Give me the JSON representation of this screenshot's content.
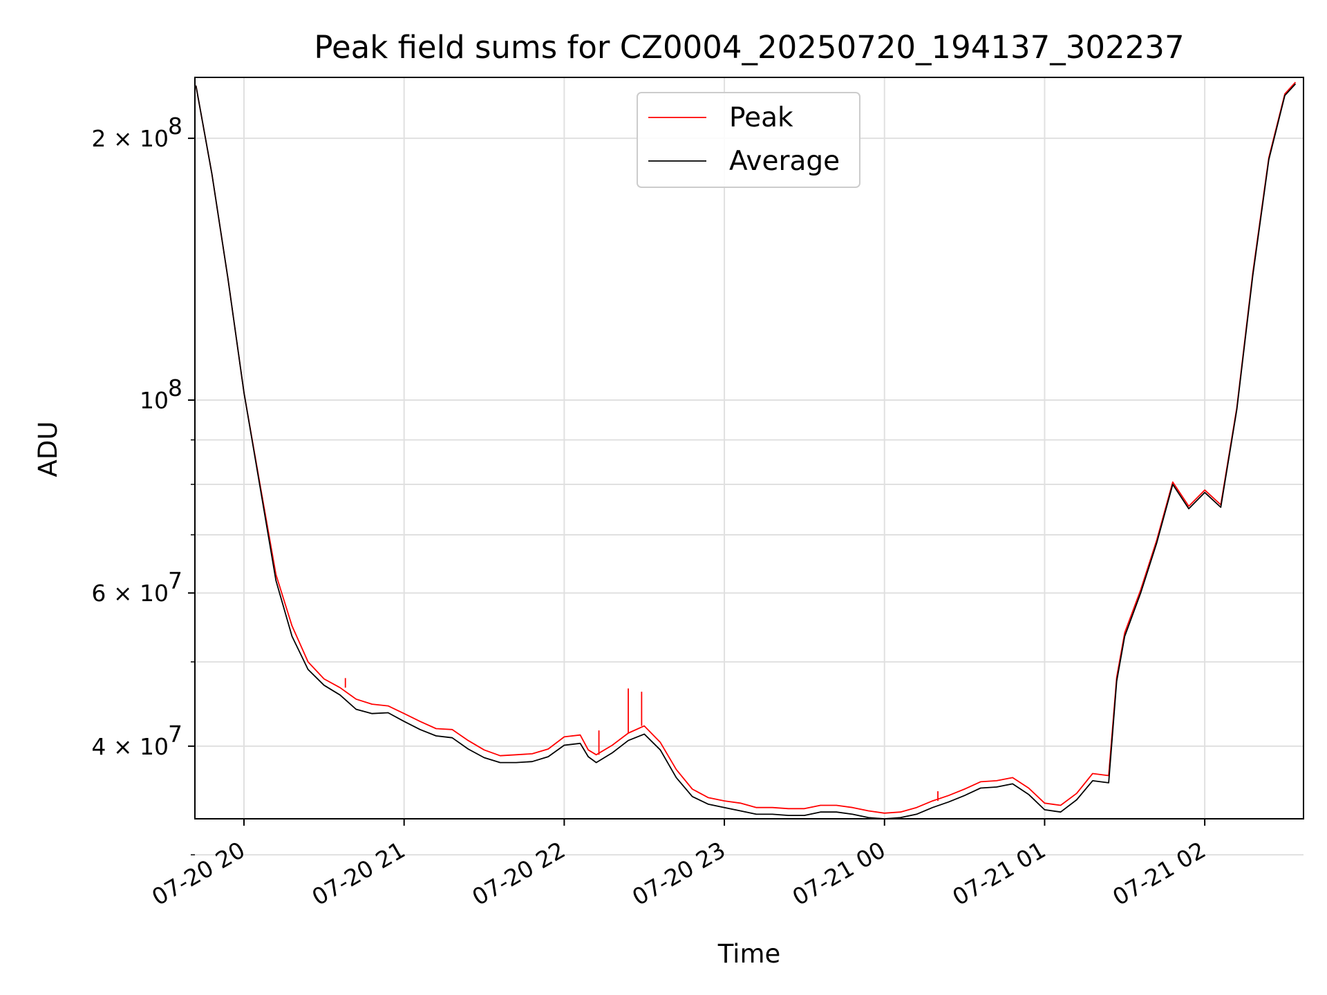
{
  "chart_data": {
    "type": "line",
    "title": "Peak field sums for CZ0004_20250720_194137_302237",
    "xlabel": "Time",
    "ylabel": "ADU",
    "yscale": "log",
    "ylim": [
      33000000,
      235000000
    ],
    "xlim": [
      "2025-07-20T19:41:37",
      "2025-07-21T02:37:00"
    ],
    "grid": true,
    "legend": {
      "location": "upper center",
      "entries": [
        "Peak",
        "Average"
      ]
    },
    "x_ticks": [
      {
        "value": "2025-07-20T20:00:00",
        "label": "07-20 20"
      },
      {
        "value": "2025-07-20T21:00:00",
        "label": "07-20 21"
      },
      {
        "value": "2025-07-20T22:00:00",
        "label": "07-20 22"
      },
      {
        "value": "2025-07-20T23:00:00",
        "label": "07-20 23"
      },
      {
        "value": "2025-07-21T00:00:00",
        "label": "07-21 00"
      },
      {
        "value": "2025-07-21T01:00:00",
        "label": "07-21 01"
      },
      {
        "value": "2025-07-21T02:00:00",
        "label": "07-21 02"
      }
    ],
    "y_ticks": [
      {
        "value": 40000000,
        "label": "4 × 10",
        "exp": "7"
      },
      {
        "value": 60000000,
        "label": "6 × 10",
        "exp": "7"
      },
      {
        "value": 100000000,
        "label": "10",
        "exp": "8"
      },
      {
        "value": 200000000,
        "label": "2 × 10",
        "exp": "8"
      }
    ],
    "y_minor_ticks": [
      30000000,
      50000000,
      70000000,
      80000000,
      90000000
    ],
    "series": [
      {
        "name": "Peak",
        "color": "#ff0000",
        "points": [
          [
            "2025-07-20T19:42:00",
            230000000
          ],
          [
            "2025-07-20T19:48:00",
            182000000
          ],
          [
            "2025-07-20T19:54:00",
            138000000
          ],
          [
            "2025-07-20T20:00:00",
            102000000
          ],
          [
            "2025-07-20T20:06:00",
            80000000
          ],
          [
            "2025-07-20T20:12:00",
            63000000
          ],
          [
            "2025-07-20T20:18:00",
            55000000
          ],
          [
            "2025-07-20T20:24:00",
            50000000
          ],
          [
            "2025-07-20T20:30:00",
            47800000
          ],
          [
            "2025-07-20T20:36:00",
            46700000
          ],
          [
            "2025-07-20T20:42:00",
            45300000
          ],
          [
            "2025-07-20T20:48:00",
            44700000
          ],
          [
            "2025-07-20T20:54:00",
            44500000
          ],
          [
            "2025-07-20T21:00:00",
            43600000
          ],
          [
            "2025-07-20T21:06:00",
            42700000
          ],
          [
            "2025-07-20T21:12:00",
            41900000
          ],
          [
            "2025-07-20T21:18:00",
            41800000
          ],
          [
            "2025-07-20T21:24:00",
            40600000
          ],
          [
            "2025-07-20T21:30:00",
            39600000
          ],
          [
            "2025-07-20T21:36:00",
            39000000
          ],
          [
            "2025-07-20T21:42:00",
            39100000
          ],
          [
            "2025-07-20T21:48:00",
            39200000
          ],
          [
            "2025-07-20T21:54:00",
            39700000
          ],
          [
            "2025-07-20T22:00:00",
            41000000
          ],
          [
            "2025-07-20T22:06:00",
            41200000
          ],
          [
            "2025-07-20T22:09:00",
            39600000
          ],
          [
            "2025-07-20T22:12:00",
            39100000
          ],
          [
            "2025-07-20T22:18:00",
            40100000
          ],
          [
            "2025-07-20T22:24:00",
            41400000
          ],
          [
            "2025-07-20T22:30:00",
            42200000
          ],
          [
            "2025-07-20T22:36:00",
            40400000
          ],
          [
            "2025-07-20T22:42:00",
            37600000
          ],
          [
            "2025-07-20T22:48:00",
            35700000
          ],
          [
            "2025-07-20T22:54:00",
            34900000
          ],
          [
            "2025-07-20T23:00:00",
            34600000
          ],
          [
            "2025-07-20T23:06:00",
            34400000
          ],
          [
            "2025-07-20T23:12:00",
            34000000
          ],
          [
            "2025-07-20T23:18:00",
            34000000
          ],
          [
            "2025-07-20T23:24:00",
            33900000
          ],
          [
            "2025-07-20T23:30:00",
            33900000
          ],
          [
            "2025-07-20T23:36:00",
            34200000
          ],
          [
            "2025-07-20T23:42:00",
            34200000
          ],
          [
            "2025-07-20T23:48:00",
            34000000
          ],
          [
            "2025-07-20T23:54:00",
            33700000
          ],
          [
            "2025-07-21T00:00:00",
            33500000
          ],
          [
            "2025-07-21T00:06:00",
            33600000
          ],
          [
            "2025-07-21T00:12:00",
            34000000
          ],
          [
            "2025-07-21T00:18:00",
            34600000
          ],
          [
            "2025-07-21T00:24:00",
            35100000
          ],
          [
            "2025-07-21T00:30:00",
            35700000
          ],
          [
            "2025-07-21T00:36:00",
            36400000
          ],
          [
            "2025-07-21T00:42:00",
            36500000
          ],
          [
            "2025-07-21T00:48:00",
            36800000
          ],
          [
            "2025-07-21T00:54:00",
            35800000
          ],
          [
            "2025-07-21T01:00:00",
            34400000
          ],
          [
            "2025-07-21T01:06:00",
            34200000
          ],
          [
            "2025-07-21T01:12:00",
            35300000
          ],
          [
            "2025-07-21T01:18:00",
            37200000
          ],
          [
            "2025-07-21T01:24:00",
            37000000
          ],
          [
            "2025-07-21T01:27:00",
            48000000
          ],
          [
            "2025-07-21T01:30:00",
            54000000
          ],
          [
            "2025-07-21T01:36:00",
            60500000
          ],
          [
            "2025-07-21T01:42:00",
            69000000
          ],
          [
            "2025-07-21T01:48:00",
            80500000
          ],
          [
            "2025-07-21T01:54:00",
            75500000
          ],
          [
            "2025-07-21T02:00:00",
            78800000
          ],
          [
            "2025-07-21T02:06:00",
            75800000
          ],
          [
            "2025-07-21T02:12:00",
            98000000
          ],
          [
            "2025-07-21T02:18:00",
            140000000
          ],
          [
            "2025-07-21T02:24:00",
            190000000
          ],
          [
            "2025-07-21T02:30:00",
            225000000
          ],
          [
            "2025-07-21T02:34:00",
            232000000
          ]
        ],
        "spikes": [
          [
            "2025-07-20T20:38:00",
            47900000
          ],
          [
            "2025-07-20T22:24:00",
            46600000
          ],
          [
            "2025-07-20T22:29:00",
            46200000
          ],
          [
            "2025-07-20T22:13:00",
            41700000
          ],
          [
            "2025-07-21T00:20:00",
            35500000
          ]
        ]
      },
      {
        "name": "Average",
        "color": "#000000",
        "points": [
          [
            "2025-07-20T19:42:00",
            230000000
          ],
          [
            "2025-07-20T19:48:00",
            182000000
          ],
          [
            "2025-07-20T19:54:00",
            138000000
          ],
          [
            "2025-07-20T20:00:00",
            102000000
          ],
          [
            "2025-07-20T20:06:00",
            79500000
          ],
          [
            "2025-07-20T20:12:00",
            62000000
          ],
          [
            "2025-07-20T20:18:00",
            53500000
          ],
          [
            "2025-07-20T20:24:00",
            49000000
          ],
          [
            "2025-07-20T20:30:00",
            47000000
          ],
          [
            "2025-07-20T20:36:00",
            45800000
          ],
          [
            "2025-07-20T20:42:00",
            44100000
          ],
          [
            "2025-07-20T20:48:00",
            43600000
          ],
          [
            "2025-07-20T20:54:00",
            43700000
          ],
          [
            "2025-07-20T21:00:00",
            42700000
          ],
          [
            "2025-07-20T21:06:00",
            41800000
          ],
          [
            "2025-07-20T21:12:00",
            41100000
          ],
          [
            "2025-07-20T21:18:00",
            40900000
          ],
          [
            "2025-07-20T21:24:00",
            39700000
          ],
          [
            "2025-07-20T21:30:00",
            38800000
          ],
          [
            "2025-07-20T21:36:00",
            38300000
          ],
          [
            "2025-07-20T21:42:00",
            38300000
          ],
          [
            "2025-07-20T21:48:00",
            38400000
          ],
          [
            "2025-07-20T21:54:00",
            38900000
          ],
          [
            "2025-07-20T22:00:00",
            40100000
          ],
          [
            "2025-07-20T22:06:00",
            40300000
          ],
          [
            "2025-07-20T22:09:00",
            38900000
          ],
          [
            "2025-07-20T22:12:00",
            38300000
          ],
          [
            "2025-07-20T22:18:00",
            39300000
          ],
          [
            "2025-07-20T22:24:00",
            40600000
          ],
          [
            "2025-07-20T22:30:00",
            41300000
          ],
          [
            "2025-07-20T22:36:00",
            39600000
          ],
          [
            "2025-07-20T22:42:00",
            36800000
          ],
          [
            "2025-07-20T22:48:00",
            35000000
          ],
          [
            "2025-07-20T22:54:00",
            34300000
          ],
          [
            "2025-07-20T23:00:00",
            34000000
          ],
          [
            "2025-07-20T23:06:00",
            33700000
          ],
          [
            "2025-07-20T23:12:00",
            33400000
          ],
          [
            "2025-07-20T23:18:00",
            33400000
          ],
          [
            "2025-07-20T23:24:00",
            33300000
          ],
          [
            "2025-07-20T23:30:00",
            33300000
          ],
          [
            "2025-07-20T23:36:00",
            33600000
          ],
          [
            "2025-07-20T23:42:00",
            33600000
          ],
          [
            "2025-07-20T23:48:00",
            33400000
          ],
          [
            "2025-07-20T23:54:00",
            33100000
          ],
          [
            "2025-07-21T00:00:00",
            33000000
          ],
          [
            "2025-07-21T00:06:00",
            33100000
          ],
          [
            "2025-07-21T00:12:00",
            33400000
          ],
          [
            "2025-07-21T00:18:00",
            34000000
          ],
          [
            "2025-07-21T00:24:00",
            34500000
          ],
          [
            "2025-07-21T00:30:00",
            35100000
          ],
          [
            "2025-07-21T00:36:00",
            35800000
          ],
          [
            "2025-07-21T00:42:00",
            35900000
          ],
          [
            "2025-07-21T00:48:00",
            36200000
          ],
          [
            "2025-07-21T00:54:00",
            35200000
          ],
          [
            "2025-07-21T01:00:00",
            33800000
          ],
          [
            "2025-07-21T01:06:00",
            33600000
          ],
          [
            "2025-07-21T01:12:00",
            34700000
          ],
          [
            "2025-07-21T01:18:00",
            36500000
          ],
          [
            "2025-07-21T01:24:00",
            36300000
          ],
          [
            "2025-07-21T01:27:00",
            47500000
          ],
          [
            "2025-07-21T01:30:00",
            53500000
          ],
          [
            "2025-07-21T01:36:00",
            60000000
          ],
          [
            "2025-07-21T01:42:00",
            68500000
          ],
          [
            "2025-07-21T01:48:00",
            80000000
          ],
          [
            "2025-07-21T01:54:00",
            75000000
          ],
          [
            "2025-07-21T02:00:00",
            78300000
          ],
          [
            "2025-07-21T02:06:00",
            75300000
          ],
          [
            "2025-07-21T02:12:00",
            97500000
          ],
          [
            "2025-07-21T02:18:00",
            139000000
          ],
          [
            "2025-07-21T02:24:00",
            189000000
          ],
          [
            "2025-07-21T02:30:00",
            224000000
          ],
          [
            "2025-07-21T02:34:00",
            231000000
          ]
        ]
      }
    ]
  }
}
